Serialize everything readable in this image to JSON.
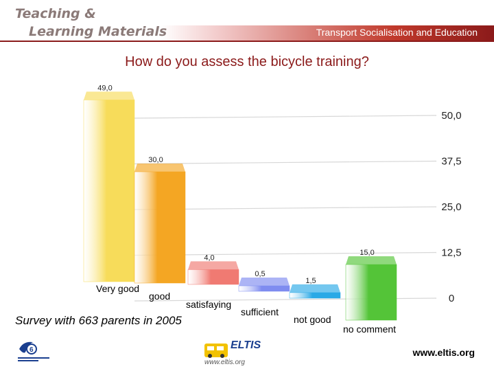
{
  "header": {
    "brand_line1": "Teaching &",
    "brand_line2": "Learning Materials",
    "subtitle": "Transport Socialisation and Education"
  },
  "chart_data": {
    "type": "bar",
    "title": "How do you assess the bicycle training?",
    "categories": [
      "Very good",
      "good",
      "satisfaying",
      "sufficient",
      "not good",
      "no comment"
    ],
    "values": [
      49.0,
      30.0,
      4.0,
      0.5,
      1.5,
      15.0
    ],
    "value_labels": [
      "49,0",
      "30,0",
      "4,0",
      "0,5",
      "1,5",
      "15,0"
    ],
    "colors": [
      "#f7dc5a",
      "#f4a623",
      "#f07a72",
      "#7f8cf0",
      "#2aa9e6",
      "#54c438"
    ],
    "yticks": [
      "0",
      "12,5",
      "25,0",
      "37,5",
      "50,0"
    ],
    "ytick_values": [
      0,
      12.5,
      25,
      37.5,
      50
    ],
    "ylim": [
      0,
      50
    ],
    "grid": true,
    "xlabel": "",
    "ylabel": ""
  },
  "footer": {
    "survey_note": "Survey with 663 parents in 2005",
    "url": "www.eltis.org",
    "eltis_name": "ELTIS",
    "eltis_url": "www.eltis.org"
  },
  "icons": {
    "partner_logo": "partner-logo-icon",
    "eltis_logo": "eltis-logo-icon"
  }
}
